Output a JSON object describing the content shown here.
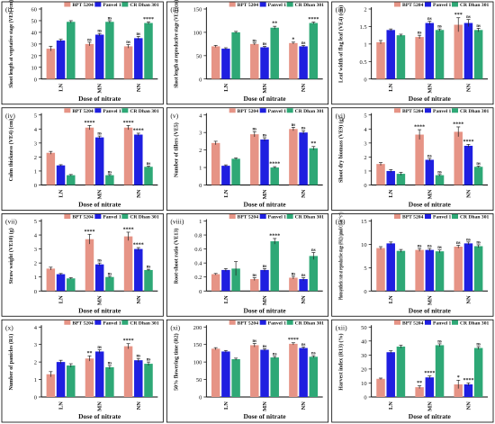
{
  "colors": {
    "BPT 5204": "#e69486",
    "Panvel 1": "#1f1fe0",
    "CR Dhan 301": "#2ea876",
    "errorbar": "#222222"
  },
  "chart_data": [
    {
      "panel": "(i)",
      "type": "bar",
      "legend": "top-right",
      "xlabel": "Dose of nitrate",
      "ylabel": "Shoot length at vegetative stage (VE1) (cm)",
      "categories": [
        "LN",
        "MN",
        "NN"
      ],
      "ylim": [
        0,
        60
      ],
      "yticks": [
        0,
        10,
        20,
        30,
        40,
        50,
        60
      ],
      "series": [
        {
          "name": "BPT 5204",
          "values": [
            26,
            30,
            28
          ],
          "errors": [
            2,
            1.5,
            1.5
          ],
          "sig": [
            "",
            "ns",
            "ns"
          ]
        },
        {
          "name": "Panvel 1",
          "values": [
            33,
            38,
            35
          ],
          "errors": [
            1,
            1,
            1.5
          ],
          "sig": [
            "",
            "ns",
            "ns"
          ]
        },
        {
          "name": "CR Dhan 301",
          "values": [
            49,
            49,
            48
          ],
          "errors": [
            1,
            1,
            1
          ],
          "sig": [
            "",
            "ns",
            "****"
          ]
        }
      ]
    },
    {
      "panel": "(ii)",
      "type": "bar",
      "legend": "top-right",
      "xlabel": "Dose of nitrate",
      "ylabel": "Shoot length at reproductive stage (VE1) (cm)",
      "categories": [
        "LN",
        "MN",
        "NN"
      ],
      "ylim": [
        0,
        150
      ],
      "yticks": [
        0,
        50,
        100,
        150
      ],
      "series": [
        {
          "name": "BPT 5204",
          "values": [
            70,
            75,
            77
          ],
          "errors": [
            2,
            2,
            2
          ],
          "sig": [
            "",
            "ns",
            "*"
          ]
        },
        {
          "name": "Panvel 1",
          "values": [
            65,
            68,
            70
          ],
          "errors": [
            2,
            2,
            2
          ],
          "sig": [
            "",
            "ns",
            "ns"
          ]
        },
        {
          "name": "CR Dhan 301",
          "values": [
            100,
            110,
            120
          ],
          "errors": [
            2,
            3,
            2
          ],
          "sig": [
            "",
            "**",
            "****"
          ]
        }
      ]
    },
    {
      "panel": "(iii)",
      "type": "bar",
      "legend": "top-right",
      "xlabel": "Dose of nitrate",
      "ylabel": "Leaf width of flag leaf (VE4) (cm)",
      "categories": [
        "LN",
        "MN",
        "NN"
      ],
      "ylim": [
        0,
        2.0
      ],
      "yticks": [
        0.0,
        0.5,
        1.0,
        1.5,
        2.0
      ],
      "series": [
        {
          "name": "BPT 5204",
          "values": [
            1.05,
            1.2,
            1.55
          ],
          "errors": [
            0.05,
            0.05,
            0.2
          ],
          "sig": [
            "",
            "ns",
            "***"
          ]
        },
        {
          "name": "Panvel 1",
          "values": [
            1.4,
            1.6,
            1.6
          ],
          "errors": [
            0.03,
            0.05,
            0.1
          ],
          "sig": [
            "",
            "ns",
            "ns"
          ]
        },
        {
          "name": "CR Dhan 301",
          "values": [
            1.25,
            1.4,
            1.4
          ],
          "errors": [
            0.03,
            0.03,
            0.05
          ],
          "sig": [
            "",
            "ns",
            "ns"
          ]
        }
      ]
    },
    {
      "panel": "(iv)",
      "type": "bar",
      "legend": "top-right",
      "xlabel": "Dose of nitrate",
      "ylabel": "Culm thickness (VE4) (cm)",
      "categories": [
        "LN",
        "MN",
        "NN"
      ],
      "ylim": [
        0,
        5
      ],
      "yticks": [
        0,
        1,
        2,
        3,
        4,
        5
      ],
      "series": [
        {
          "name": "BPT 5204",
          "values": [
            2.3,
            4.1,
            4.1
          ],
          "errors": [
            0.1,
            0.15,
            0.15
          ],
          "sig": [
            "",
            "****",
            "****"
          ]
        },
        {
          "name": "Panvel 1",
          "values": [
            1.4,
            3.4,
            3.6
          ],
          "errors": [
            0.05,
            0.1,
            0.1
          ],
          "sig": [
            "",
            "ns",
            "****"
          ]
        },
        {
          "name": "CR Dhan 301",
          "values": [
            0.7,
            0.7,
            1.3
          ],
          "errors": [
            0.05,
            0.05,
            0.05
          ],
          "sig": [
            "",
            "ns",
            "ns"
          ]
        }
      ]
    },
    {
      "panel": "(v)",
      "type": "bar",
      "legend": "top-right",
      "xlabel": "Dose of nitrate",
      "ylabel": "Number of tillers (VE5)",
      "categories": [
        "LN",
        "MN",
        "NN"
      ],
      "ylim": [
        0,
        4
      ],
      "yticks": [
        0,
        1,
        2,
        3,
        4
      ],
      "series": [
        {
          "name": "BPT 5204",
          "values": [
            2.4,
            2.9,
            3.2
          ],
          "errors": [
            0.1,
            0.15,
            0.1
          ],
          "sig": [
            "",
            "ns",
            "ns"
          ]
        },
        {
          "name": "Panvel 1",
          "values": [
            1.1,
            2.6,
            3.0
          ],
          "errors": [
            0.05,
            0.1,
            0.1
          ],
          "sig": [
            "",
            "ns",
            "ns"
          ]
        },
        {
          "name": "CR Dhan 301",
          "values": [
            1.5,
            1.0,
            2.1
          ],
          "errors": [
            0.05,
            0.05,
            0.1
          ],
          "sig": [
            "",
            "****",
            "**"
          ]
        }
      ]
    },
    {
      "panel": "(vi)",
      "type": "bar",
      "legend": "top-right",
      "xlabel": "Dose of nitrate",
      "ylabel": "Shoot dry biomass (VE9) (g)",
      "categories": [
        "LN",
        "MN",
        "NN"
      ],
      "ylim": [
        0,
        5
      ],
      "yticks": [
        0,
        1,
        2,
        3,
        4,
        5
      ],
      "series": [
        {
          "name": "BPT 5204",
          "values": [
            1.5,
            3.6,
            3.8
          ],
          "errors": [
            0.1,
            0.35,
            0.35
          ],
          "sig": [
            "",
            "****",
            "****"
          ]
        },
        {
          "name": "Panvel 1",
          "values": [
            1.0,
            1.8,
            2.8
          ],
          "errors": [
            0.1,
            0.1,
            0.1
          ],
          "sig": [
            "",
            "ns",
            "****"
          ]
        },
        {
          "name": "CR Dhan 301",
          "values": [
            0.8,
            0.7,
            1.3
          ],
          "errors": [
            0.1,
            0.05,
            0.05
          ],
          "sig": [
            "",
            "ns",
            "ns"
          ]
        }
      ]
    },
    {
      "panel": "(vii)",
      "type": "bar",
      "legend": "top-right",
      "xlabel": "Dose of nitrate",
      "ylabel": "Straw weight (VE10) (g)",
      "categories": [
        "LN",
        "MN",
        "NN"
      ],
      "ylim": [
        0,
        5
      ],
      "yticks": [
        0,
        1,
        2,
        3,
        4,
        5
      ],
      "series": [
        {
          "name": "BPT 5204",
          "values": [
            1.6,
            3.7,
            3.9
          ],
          "errors": [
            0.1,
            0.35,
            0.3
          ],
          "sig": [
            "",
            "****",
            "****"
          ]
        },
        {
          "name": "Panvel 1",
          "values": [
            1.2,
            1.9,
            3.0
          ],
          "errors": [
            0.05,
            0.1,
            0.1
          ],
          "sig": [
            "",
            "ns",
            "****"
          ]
        },
        {
          "name": "CR Dhan 301",
          "values": [
            0.9,
            1.0,
            1.5
          ],
          "errors": [
            0.05,
            0.05,
            0.05
          ],
          "sig": [
            "",
            "ns",
            "ns"
          ]
        }
      ]
    },
    {
      "panel": "(viii)",
      "type": "bar",
      "legend": "top-right",
      "xlabel": "Dose of nitrate",
      "ylabel": "Root-shoot ratio (VE13)",
      "categories": [
        "LN",
        "MN",
        "NN"
      ],
      "ylim": [
        0,
        1.0
      ],
      "yticks": [
        0.0,
        0.2,
        0.4,
        0.6,
        0.8,
        1.0
      ],
      "series": [
        {
          "name": "BPT 5204",
          "values": [
            0.24,
            0.17,
            0.19
          ],
          "errors": [
            0.01,
            0.02,
            0.02
          ],
          "sig": [
            "",
            "ns",
            "ns"
          ]
        },
        {
          "name": "Panvel 1",
          "values": [
            0.3,
            0.3,
            0.17
          ],
          "errors": [
            0.02,
            0.02,
            0.02
          ],
          "sig": [
            "",
            "ns",
            "ns"
          ]
        },
        {
          "name": "CR Dhan 301",
          "values": [
            0.32,
            0.71,
            0.5
          ],
          "errors": [
            0.1,
            0.04,
            0.05
          ],
          "sig": [
            "",
            "****",
            "ns"
          ]
        }
      ]
    },
    {
      "panel": "(ix)",
      "type": "bar",
      "legend": "top-right",
      "xlabel": "Dose of nitrate",
      "ylabel": "Photosynthetic rate at reproductive stage (PR2) (μmol/CO₂m⁻²s⁻¹)",
      "categories": [
        "LN",
        "MN",
        "NN"
      ],
      "ylim": [
        0,
        15
      ],
      "yticks": [
        0,
        5,
        10,
        15
      ],
      "series": [
        {
          "name": "BPT 5204",
          "values": [
            9.2,
            8.8,
            9.5
          ],
          "errors": [
            0.3,
            0.3,
            0.3
          ],
          "sig": [
            "",
            "ns",
            "ns"
          ]
        },
        {
          "name": "Panvel 1",
          "values": [
            10.2,
            8.8,
            10.2
          ],
          "errors": [
            0.3,
            0.3,
            0.3
          ],
          "sig": [
            "",
            "ns",
            "ns"
          ]
        },
        {
          "name": "CR Dhan 301",
          "values": [
            8.6,
            8.5,
            9.6
          ],
          "errors": [
            0.3,
            0.3,
            0.3
          ],
          "sig": [
            "",
            "ns",
            "ns"
          ]
        }
      ]
    },
    {
      "panel": "(x)",
      "type": "bar",
      "legend": "top-right",
      "xlabel": "Dose of nitrate",
      "ylabel": "Number of panicles (R1)",
      "categories": [
        "LN",
        "MN",
        "NN"
      ],
      "ylim": [
        0,
        4
      ],
      "yticks": [
        0,
        1,
        2,
        3,
        4
      ],
      "series": [
        {
          "name": "BPT 5204",
          "values": [
            1.3,
            2.2,
            2.9
          ],
          "errors": [
            0.15,
            0.15,
            0.15
          ],
          "sig": [
            "",
            "**",
            "****"
          ]
        },
        {
          "name": "Panvel 1",
          "values": [
            2.0,
            2.6,
            2.1
          ],
          "errors": [
            0.1,
            0.1,
            0.1
          ],
          "sig": [
            "",
            "ns",
            "ns"
          ]
        },
        {
          "name": "CR Dhan 301",
          "values": [
            1.8,
            1.7,
            1.9
          ],
          "errors": [
            0.1,
            0.1,
            0.1
          ],
          "sig": [
            "",
            "ns",
            "ns"
          ]
        }
      ]
    },
    {
      "panel": "(xi)",
      "type": "bar",
      "legend": "top-right",
      "xlabel": "Dose of nitrate",
      "ylabel": "50% flowering time (R2)",
      "categories": [
        "LN",
        "MN",
        "NN"
      ],
      "ylim": [
        0,
        200
      ],
      "yticks": [
        0,
        50,
        100,
        150,
        200
      ],
      "series": [
        {
          "name": "BPT 5204",
          "values": [
            138,
            148,
            152
          ],
          "errors": [
            3,
            5,
            3
          ],
          "sig": [
            "",
            "ns",
            "****"
          ]
        },
        {
          "name": "Panvel 1",
          "values": [
            130,
            135,
            140
          ],
          "errors": [
            3,
            3,
            3
          ],
          "sig": [
            "",
            "ns",
            "ns"
          ]
        },
        {
          "name": "CR Dhan 301",
          "values": [
            108,
            113,
            115
          ],
          "errors": [
            3,
            3,
            3
          ],
          "sig": [
            "",
            "ns",
            "ns"
          ]
        }
      ]
    },
    {
      "panel": "(xii)",
      "type": "bar",
      "legend": "top-right",
      "xlabel": "Dose of nitrate",
      "ylabel": "Harvest index (R13) (%)",
      "categories": [
        "LN",
        "MN",
        "NN"
      ],
      "ylim": [
        0,
        50
      ],
      "yticks": [
        0,
        10,
        20,
        30,
        40,
        50
      ],
      "series": [
        {
          "name": "BPT 5204",
          "values": [
            13,
            7,
            9
          ],
          "errors": [
            0.5,
            1,
            3
          ],
          "sig": [
            "",
            "**",
            "*"
          ]
        },
        {
          "name": "Panvel 1",
          "values": [
            32,
            14,
            9
          ],
          "errors": [
            1,
            1,
            1
          ],
          "sig": [
            "",
            "****",
            "****"
          ]
        },
        {
          "name": "CR Dhan 301",
          "values": [
            36,
            37,
            35
          ],
          "errors": [
            1,
            1,
            1
          ],
          "sig": [
            "",
            "ns",
            "ns"
          ]
        }
      ]
    }
  ]
}
